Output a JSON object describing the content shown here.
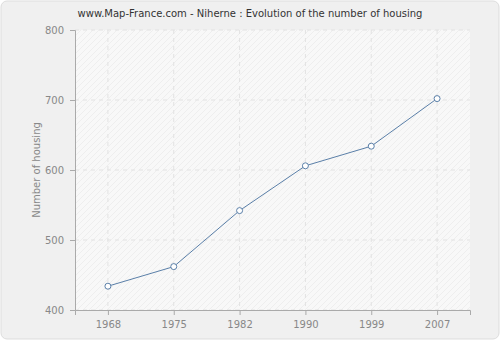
{
  "chart_data": {
    "type": "line",
    "title": "www.Map-France.com - Niherne : Evolution of the number of housing",
    "y_label": "Number of housing",
    "categories": [
      "1968",
      "1975",
      "1982",
      "1990",
      "1999",
      "2007"
    ],
    "values": [
      434,
      462,
      542,
      606,
      634,
      702
    ],
    "color": "#5a7fa8",
    "marker": "circle",
    "ylim": [
      400,
      800
    ],
    "yticks": [
      400,
      500,
      600,
      700,
      800
    ],
    "grid": true
  }
}
